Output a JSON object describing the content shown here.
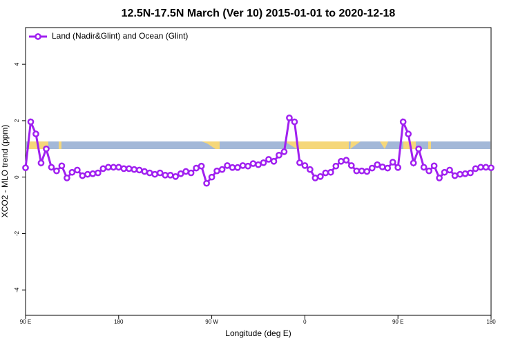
{
  "chart_data": {
    "type": "line",
    "title": "12.5N-17.5N March (Ver 10)   2015-01-01 to 2020-12-18",
    "x_label": "Longitude (deg E)",
    "y_label": "XCO2 - MLO trend (ppm)",
    "x": [
      90,
      95,
      100,
      105,
      110,
      115,
      120,
      125,
      130,
      135,
      140,
      145,
      150,
      155,
      160,
      165,
      170,
      175,
      180,
      185,
      190,
      195,
      200,
      205,
      210,
      215,
      220,
      225,
      230,
      235,
      240,
      245,
      250,
      255,
      260,
      265,
      270,
      275,
      280,
      285,
      290,
      295,
      300,
      305,
      310,
      315,
      320,
      325,
      330,
      335,
      340,
      345,
      350,
      355,
      360,
      365,
      370,
      375,
      380,
      385,
      390,
      395,
      400,
      405,
      410,
      415,
      420,
      425,
      430,
      435,
      440,
      445,
      450,
      455,
      460,
      465,
      470,
      475,
      480,
      485,
      490,
      495,
      500,
      505,
      510,
      515,
      520,
      525,
      530,
      535,
      540
    ],
    "series": [
      {
        "name": "Land (Nadir&Glint) and Ocean (Glint)",
        "color": "#a020f0",
        "values": [
          0.33,
          1.96,
          1.53,
          0.5,
          1.0,
          0.35,
          0.22,
          0.4,
          -0.03,
          0.17,
          0.25,
          0.05,
          0.1,
          0.12,
          0.15,
          0.3,
          0.35,
          0.35,
          0.35,
          0.3,
          0.3,
          0.27,
          0.25,
          0.2,
          0.15,
          0.1,
          0.15,
          0.07,
          0.07,
          0.02,
          0.12,
          0.2,
          0.15,
          0.32,
          0.39,
          -0.22,
          0,
          0.22,
          0.27,
          0.41,
          0.34,
          0.34,
          0.41,
          0.39,
          0.48,
          0.44,
          0.51,
          0.63,
          0.56,
          0.78,
          0.9,
          2.1,
          1.96,
          0.51,
          0.41,
          0.27,
          -0.03,
          0.02,
          0.15,
          0.17,
          0.39,
          0.56,
          0.6,
          0.41,
          0.22,
          0.22,
          0.2,
          0.32,
          0.44,
          0.36,
          0.32,
          0.53,
          0.34,
          1.96,
          1.53,
          0.5,
          1.0,
          0.35,
          0.22,
          0.4,
          -0.03,
          0.17,
          0.25,
          0.05,
          0.1,
          0.12,
          0.15,
          0.3,
          0.35,
          0.35,
          0.33
        ]
      }
    ],
    "xlim": [
      90,
      540
    ],
    "xticks": [
      {
        "value": 90,
        "label": "90 E"
      },
      180,
      {
        "value": 270,
        "label": "90 W"
      },
      {
        "value": 360,
        "label": "0"
      },
      {
        "value": 450,
        "label": "90 E"
      },
      {
        "value": 540,
        "label": "180"
      }
    ],
    "ylim": [
      -4.9,
      5.3
    ],
    "yticks": [
      -4,
      -2,
      0,
      2,
      4
    ],
    "legend": "top-left"
  }
}
